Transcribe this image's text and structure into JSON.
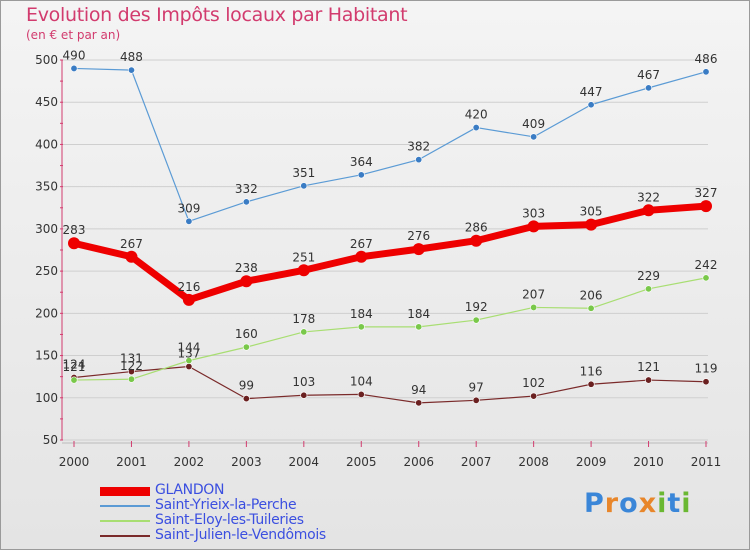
{
  "title": "Evolution des Impôts locaux par Habitant",
  "subtitle": "(en € et par an)",
  "logo": {
    "letters": [
      "P",
      "r",
      "o",
      "x",
      "i",
      "t",
      "i"
    ],
    "colors": [
      "#3a86d8",
      "#e8862a",
      "#3a86d8",
      "#e8862a",
      "#6ab832",
      "#3a86d8",
      "#6ab832"
    ]
  },
  "chart_data": {
    "type": "line",
    "title": "Evolution des Impôts locaux par Habitant",
    "ylabel": "(en € et par an)",
    "xlabel": "",
    "x": [
      "2000",
      "2001",
      "2002",
      "2003",
      "2004",
      "2005",
      "2006",
      "2007",
      "2008",
      "2009",
      "2010",
      "2011"
    ],
    "ylim": [
      50,
      500
    ],
    "yticks": [
      50,
      100,
      150,
      200,
      250,
      300,
      350,
      400,
      450,
      500
    ],
    "series": [
      {
        "name": "GLANDON",
        "color": "#ee0000",
        "values": [
          283,
          267,
          216,
          238,
          251,
          267,
          276,
          286,
          303,
          305,
          322,
          327
        ]
      },
      {
        "name": "Saint-Yrieix-la-Perche",
        "color": "#5b9bd5",
        "values": [
          490,
          488,
          309,
          332,
          351,
          364,
          382,
          420,
          409,
          447,
          467,
          486
        ]
      },
      {
        "name": "Saint-Eloy-les-Tuileries",
        "color": "#a8de72",
        "values": [
          121,
          122,
          144,
          160,
          178,
          184,
          184,
          192,
          207,
          206,
          229,
          242
        ]
      },
      {
        "name": "Saint-Julien-le-Vendômois",
        "color": "#7a2a2a",
        "values": [
          124,
          131,
          137,
          99,
          103,
          104,
          94,
          97,
          102,
          116,
          121,
          119
        ]
      }
    ]
  }
}
